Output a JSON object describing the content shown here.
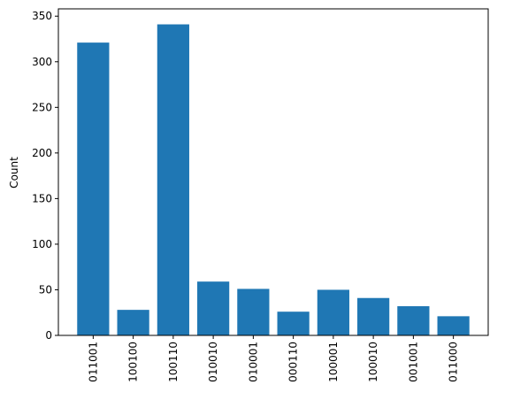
{
  "chart_data": {
    "type": "bar",
    "y_label": "Count",
    "categories": [
      "011001",
      "100100",
      "100110",
      "010010",
      "010001",
      "000110",
      "100001",
      "100010",
      "001001",
      "011000"
    ],
    "values": [
      321,
      28,
      341,
      59,
      51,
      26,
      50,
      41,
      32,
      21
    ],
    "color": "#1f77b4",
    "ylim": [
      0,
      358
    ],
    "yticks": [
      0,
      50,
      100,
      150,
      200,
      250,
      300,
      350
    ],
    "grid": false
  }
}
